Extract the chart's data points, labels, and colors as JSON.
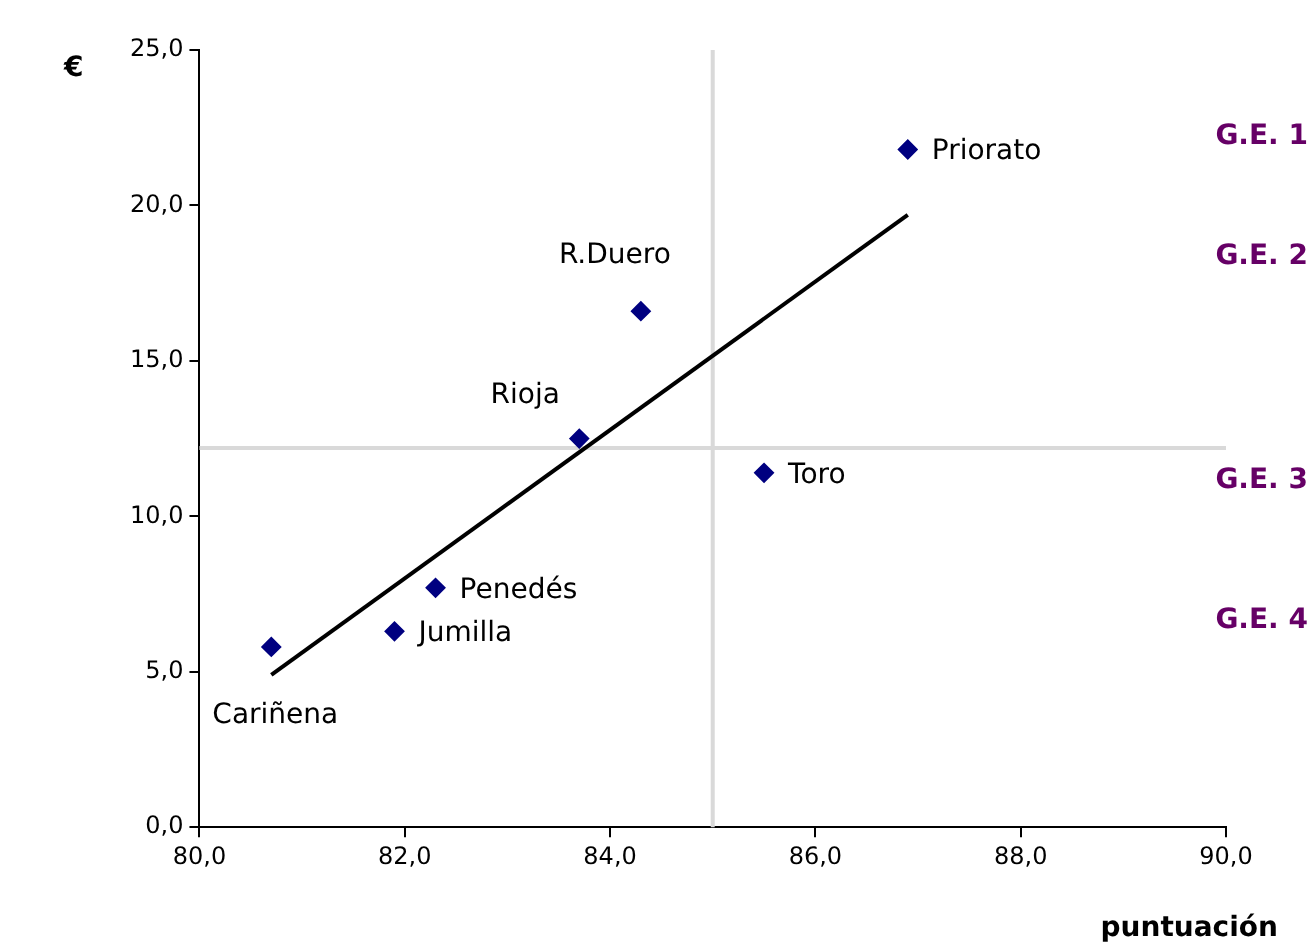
{
  "chart_data": {
    "type": "scatter",
    "xlabel": "puntuación",
    "ylabel": "€",
    "xlim": [
      80,
      90
    ],
    "xticks": [
      {
        "value": 80,
        "label": "80,0"
      },
      {
        "value": 82,
        "label": "82,0"
      },
      {
        "value": 84,
        "label": "84,0"
      },
      {
        "value": 86,
        "label": "86,0"
      },
      {
        "value": 88,
        "label": "88,0"
      },
      {
        "value": 90,
        "label": "90,0"
      }
    ],
    "ylim": [
      0,
      25
    ],
    "yticks": [
      {
        "value": 0,
        "label": "0,0"
      },
      {
        "value": 5,
        "label": "5,0"
      },
      {
        "value": 10,
        "label": "10,0"
      },
      {
        "value": 15,
        "label": "15,0"
      },
      {
        "value": 20,
        "label": "20,0"
      },
      {
        "value": 25,
        "label": "25,0"
      }
    ],
    "grid": false,
    "marker": "diamond",
    "series": [
      {
        "color": "#000080",
        "x": [
          80.7,
          81.9,
          82.3,
          83.7,
          84.3,
          85.5,
          86.9
        ],
        "values": [
          5.8,
          6.3,
          7.7,
          12.5,
          16.6,
          11.4,
          21.8
        ]
      },
      {
        "type": "line",
        "color": "#000000",
        "marker": "none",
        "x": [
          80.7,
          86.9
        ],
        "values": [
          4.9,
          19.7
        ]
      }
    ],
    "ref_lines": [
      {
        "axis": "x",
        "value": 85,
        "color": "#d9d9d9"
      },
      {
        "axis": "y",
        "value": 12.2,
        "color": "#d9d9d9"
      }
    ],
    "annotations": [
      {
        "text": "Cariñena",
        "x": 80.7,
        "y": 5.8
      },
      {
        "text": "Jumilla",
        "x": 81.9,
        "y": 6.3
      },
      {
        "text": "Penedés",
        "x": 82.3,
        "y": 7.7
      },
      {
        "text": "Rioja",
        "x": 83.7,
        "y": 12.5
      },
      {
        "text": "R.Duero",
        "x": 84.3,
        "y": 16.6
      },
      {
        "text": "Toro",
        "x": 85.5,
        "y": 11.4
      },
      {
        "text": "Priorato",
        "x": 86.9,
        "y": 21.8
      },
      "G.E. 1",
      "G.E. 2",
      "G.E. 3",
      "G.E. 4"
    ]
  }
}
